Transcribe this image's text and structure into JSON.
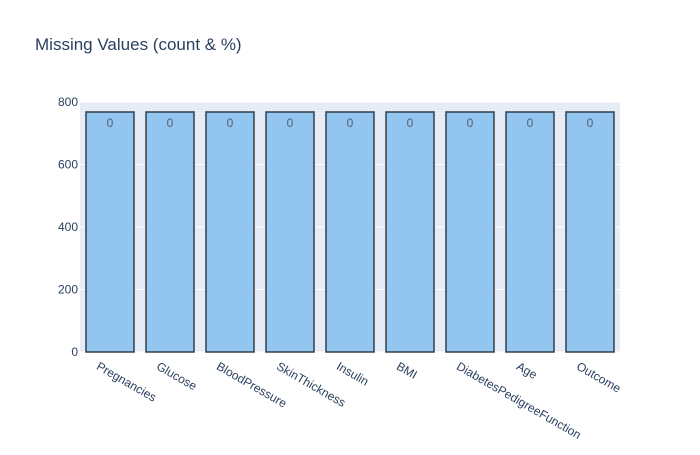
{
  "chart_data": {
    "type": "bar",
    "title": "Missing Values (count & %)",
    "xlabel": "",
    "ylabel": "",
    "categories": [
      "Pregnancies",
      "Glucose",
      "BloodPressure",
      "SkinThickness",
      "Insulin",
      "BMI",
      "DiabetesPedigreeFunction",
      "Age",
      "Outcome"
    ],
    "values": [
      768,
      768,
      768,
      768,
      768,
      768,
      768,
      768,
      768
    ],
    "data_labels": [
      "0",
      "0",
      "0",
      "0",
      "0",
      "0",
      "0",
      "0",
      "0"
    ],
    "ylim": [
      0,
      800
    ],
    "yticks": [
      0,
      200,
      400,
      600,
      800
    ],
    "grid": true,
    "legend": "none"
  },
  "colors": {
    "plot_bg": "#e5ecf6",
    "grid": "#ffffff",
    "bar_fill": "#92c5f0",
    "bar_stroke": "#333f48",
    "title": "#2a3f5f",
    "tick": "#2a3f5f",
    "data_label": "#555f6b"
  }
}
